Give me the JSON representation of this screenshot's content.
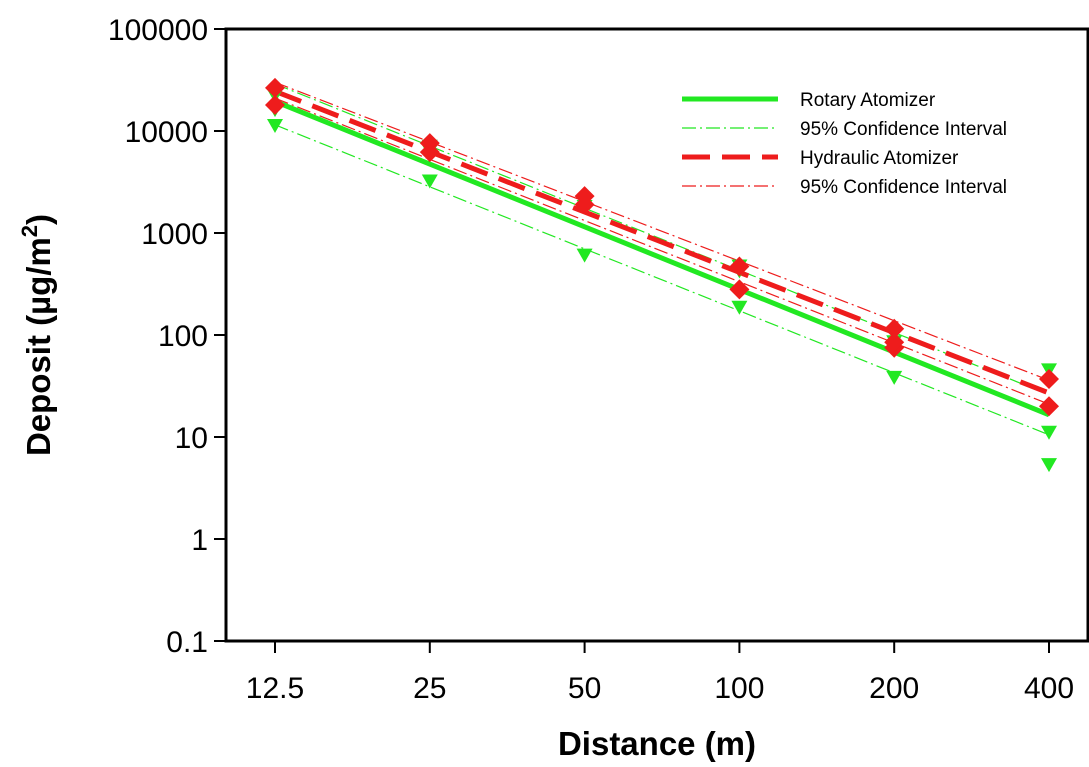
{
  "chart_data": {
    "type": "scatter",
    "title": "",
    "xlabel": "Distance (m)",
    "ylabel_main": "Deposit (µg/m",
    "ylabel_sup": "2",
    "ylabel_close": ")",
    "x_scale": "log",
    "y_scale": "log",
    "xlim": [
      12.5,
      400
    ],
    "ylim": [
      0.1,
      100000
    ],
    "x_ticks": [
      12.5,
      25,
      50,
      100,
      200,
      400
    ],
    "x_tick_labels": [
      "12.5",
      "25",
      "50",
      "100",
      "200",
      "400"
    ],
    "y_ticks": [
      0.1,
      1,
      10,
      100,
      1000,
      10000,
      100000
    ],
    "y_tick_labels": [
      "0.1",
      "1",
      "10",
      "100",
      "1000",
      "10000",
      "100000"
    ],
    "grid": false,
    "legend_position": "top-right",
    "legend": [
      {
        "label": "Rotary Atomizer",
        "style": "solid",
        "color": "#22e822"
      },
      {
        "label": "95% Confidence Interval",
        "style": "dash-dot",
        "color": "#22e822"
      },
      {
        "label": "Hydraulic Atomizer",
        "style": "dashed",
        "color": "#ee1c1c"
      },
      {
        "label": "95% Confidence Interval",
        "style": "dash-dot",
        "color": "#ee1c1c"
      }
    ],
    "series": [
      {
        "name": "Rotary Atomizer",
        "color": "#22e822",
        "marker": "triangle-down",
        "points": [
          [
            12.5,
            11200
          ],
          [
            12.5,
            16000
          ],
          [
            12.5,
            22000
          ],
          [
            25,
            3200
          ],
          [
            25,
            6300
          ],
          [
            25,
            7000
          ],
          [
            50,
            600
          ],
          [
            50,
            1800
          ],
          [
            50,
            2000
          ],
          [
            100,
            185
          ],
          [
            100,
            420
          ],
          [
            100,
            470
          ],
          [
            200,
            38
          ],
          [
            200,
            72
          ],
          [
            200,
            85
          ],
          [
            400,
            5.3
          ],
          [
            400,
            11
          ],
          [
            400,
            45
          ]
        ],
        "fit": [
          [
            12.5,
            19500
          ],
          [
            400,
            16.5
          ]
        ],
        "ci_lower": [
          [
            12.5,
            11500
          ],
          [
            400,
            10.5
          ]
        ],
        "ci_upper": [
          [
            12.5,
            29000
          ],
          [
            400,
            26
          ]
        ]
      },
      {
        "name": "Hydraulic Atomizer",
        "color": "#ee1c1c",
        "marker": "diamond",
        "points": [
          [
            12.5,
            18000
          ],
          [
            12.5,
            26500
          ],
          [
            25,
            6200
          ],
          [
            25,
            7600
          ],
          [
            50,
            1900
          ],
          [
            50,
            2300
          ],
          [
            100,
            280
          ],
          [
            100,
            470
          ],
          [
            200,
            75
          ],
          [
            200,
            85
          ],
          [
            200,
            115
          ],
          [
            400,
            20
          ],
          [
            400,
            37
          ]
        ],
        "fit": [
          [
            12.5,
            24500
          ],
          [
            400,
            27
          ]
        ],
        "ci_lower": [
          [
            12.5,
            21000
          ],
          [
            400,
            21
          ]
        ],
        "ci_upper": [
          [
            12.5,
            30000
          ],
          [
            400,
            36
          ]
        ]
      }
    ]
  }
}
